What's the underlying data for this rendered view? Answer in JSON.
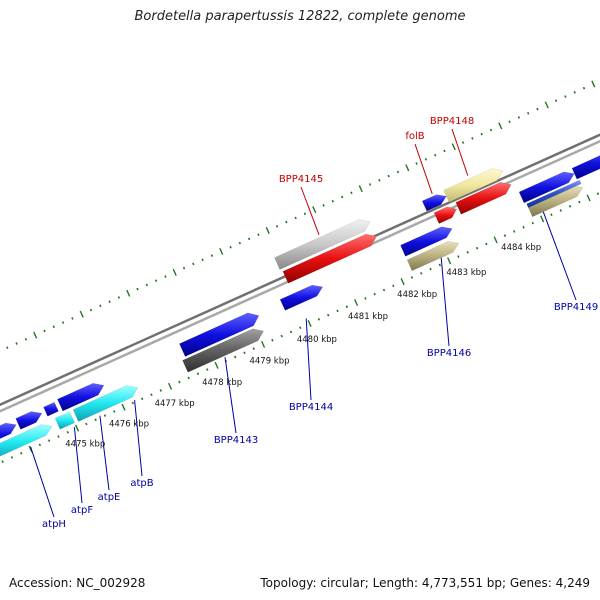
{
  "title": "Bordetella parapertussis 12822, complete genome",
  "footer": {
    "accession": "Accession: NC_002928",
    "summary": "Topology: circular; Length: 4,773,551 bp; Genes: 4,249"
  },
  "colors": {
    "forward_cds": "#1010e0",
    "reverse_cds": "#e81010",
    "cyan_cds": "#20e8f0",
    "light_gray": "#c8c8c8",
    "dark_gray": "#606060",
    "khaki": "#b8b080",
    "pale_yellow": "#f0e8a0",
    "backbone": "#909090",
    "tick_green": "#207820",
    "label_blue": "#0000a0",
    "label_red": "#c00000"
  },
  "kbp_labels": [
    "4475 kbp",
    "4476 kbp",
    "4477 kbp",
    "4478 kbp",
    "4479 kbp",
    "4480 kbp",
    "4481 kbp",
    "4482 kbp",
    "4483 kbp",
    "4484 kbp"
  ],
  "gene_labels": [
    {
      "text": "atpH",
      "color": "blue"
    },
    {
      "text": "atpF",
      "color": "blue"
    },
    {
      "text": "atpE",
      "color": "blue"
    },
    {
      "text": "atpB",
      "color": "blue"
    },
    {
      "text": "BPP4143",
      "color": "blue"
    },
    {
      "text": "BPP4144",
      "color": "blue"
    },
    {
      "text": "BPP4146",
      "color": "blue"
    },
    {
      "text": "BPP4149",
      "color": "blue"
    },
    {
      "text": "BPP4145",
      "color": "red"
    },
    {
      "text": "folB",
      "color": "red"
    },
    {
      "text": "BPP4148",
      "color": "red"
    }
  ]
}
